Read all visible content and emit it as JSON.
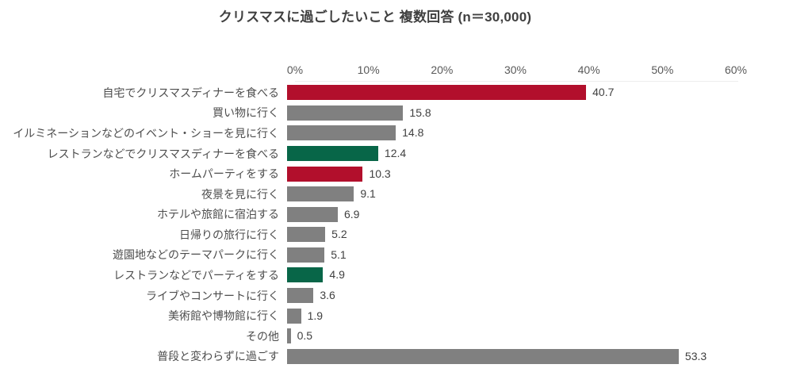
{
  "title": "クリスマスに過ごしたいこと 複数回答 (n＝30,000)",
  "colors": {
    "red": "#b20f2c",
    "gray": "#808080",
    "green": "#086648",
    "title_text": "#404040",
    "label_text": "#4d4d4d",
    "axis_text": "#595959"
  },
  "chart_data": {
    "type": "bar",
    "orientation": "horizontal",
    "title": "クリスマスに過ごしたいこと 複数回答 (n＝30,000)",
    "categories": [
      "自宅でクリスマスディナーを食べる",
      "買い物に行く",
      "イルミネーションなどのイベント・ショーを見に行く",
      "レストランなどでクリスマスディナーを食べる",
      "ホームパーティをする",
      "夜景を見に行く",
      "ホテルや旅館に宿泊する",
      "日帰りの旅行に行く",
      "遊園地などのテーマパークに行く",
      "レストランなどでパーティをする",
      "ライブやコンサートに行く",
      "美術館や博物館に行く",
      "その他",
      "普段と変わらずに過ごす"
    ],
    "values": [
      40.7,
      15.8,
      14.8,
      12.4,
      10.3,
      9.1,
      6.9,
      5.2,
      5.1,
      4.9,
      3.6,
      1.9,
      0.5,
      53.3
    ],
    "value_labels": [
      "40.7",
      "15.8",
      "14.8",
      "12.4",
      "10.3",
      "9.1",
      "6.9",
      "5.2",
      "5.1",
      "4.9",
      "3.6",
      "1.9",
      "0.5",
      "53.3"
    ],
    "bar_colors": [
      "red",
      "gray",
      "gray",
      "green",
      "red",
      "gray",
      "gray",
      "gray",
      "gray",
      "green",
      "gray",
      "gray",
      "gray",
      "gray"
    ],
    "xlabel": "",
    "ylabel": "",
    "x_axis": {
      "min": 0,
      "max": 60,
      "ticks": [
        "0%",
        "10%",
        "20%",
        "30%",
        "40%",
        "50%",
        "60%"
      ],
      "position": "top"
    },
    "grid": "none",
    "legend": "none"
  }
}
